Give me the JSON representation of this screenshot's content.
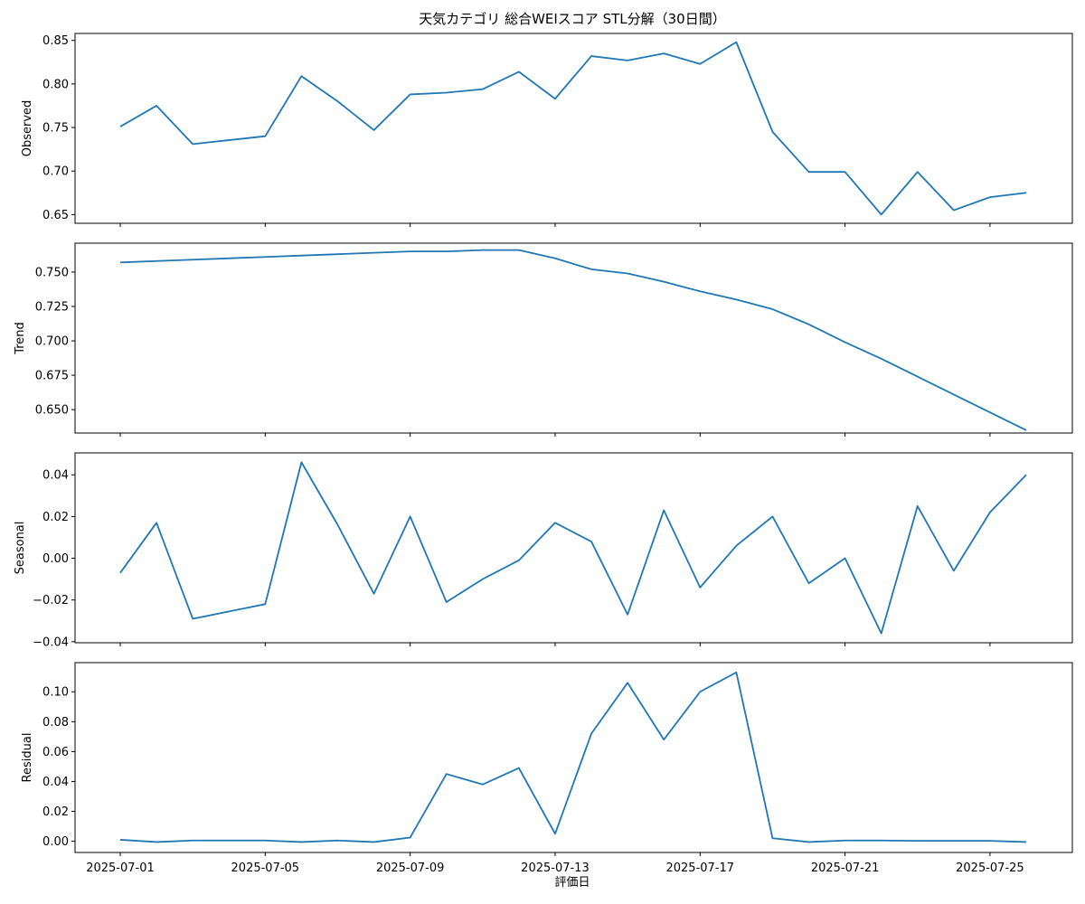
{
  "chart_data": {
    "type": "line",
    "title": "天気カテゴリ 総合WEIスコア STL分解（30日間）",
    "xlabel": "評価日",
    "x": [
      "2025-07-01",
      "2025-07-02",
      "2025-07-03",
      "2025-07-05",
      "2025-07-06",
      "2025-07-07",
      "2025-07-08",
      "2025-07-09",
      "2025-07-10",
      "2025-07-11",
      "2025-07-12",
      "2025-07-13",
      "2025-07-14",
      "2025-07-15",
      "2025-07-16",
      "2025-07-17",
      "2025-07-18",
      "2025-07-19",
      "2025-07-20",
      "2025-07-21",
      "2025-07-22",
      "2025-07-23",
      "2025-07-24",
      "2025-07-25",
      "2025-07-26"
    ],
    "x_ticks": [
      "2025-07-01",
      "2025-07-05",
      "2025-07-09",
      "2025-07-13",
      "2025-07-17",
      "2025-07-21",
      "2025-07-25"
    ],
    "panels": [
      {
        "ylabel": "Observed",
        "ylim": [
          0.64,
          0.858
        ],
        "yticks": [
          "0.65",
          "0.70",
          "0.75",
          "0.80",
          "0.85"
        ],
        "values": [
          0.751,
          0.775,
          0.731,
          0.74,
          0.809,
          0.78,
          0.747,
          0.788,
          0.79,
          0.794,
          0.814,
          0.783,
          0.832,
          0.827,
          0.835,
          0.823,
          0.848,
          0.745,
          0.699,
          0.699,
          0.65,
          0.699,
          0.655,
          0.67,
          0.675
        ]
      },
      {
        "ylabel": "Trend",
        "ylim": [
          0.633,
          0.771
        ],
        "yticks": [
          "0.650",
          "0.675",
          "0.700",
          "0.725",
          "0.750"
        ],
        "values": [
          0.757,
          0.758,
          0.759,
          0.761,
          0.762,
          0.763,
          0.764,
          0.765,
          0.765,
          0.766,
          0.766,
          0.76,
          0.752,
          0.749,
          0.743,
          0.736,
          0.73,
          0.723,
          0.712,
          0.699,
          0.687,
          0.674,
          0.661,
          0.648,
          0.635
        ]
      },
      {
        "ylabel": "Seasonal",
        "ylim": [
          -0.0405,
          0.0505
        ],
        "yticks": [
          "−0.04",
          "−0.02",
          "0.00",
          "0.02",
          "0.04"
        ],
        "values": [
          -0.007,
          0.017,
          -0.029,
          -0.022,
          0.046,
          0.016,
          -0.017,
          0.02,
          -0.021,
          -0.01,
          -0.001,
          0.017,
          0.008,
          -0.027,
          0.023,
          -0.014,
          0.006,
          0.02,
          -0.012,
          0.0,
          -0.036,
          0.025,
          -0.006,
          0.022,
          0.04
        ]
      },
      {
        "ylabel": "Residual",
        "ylim": [
          -0.0075,
          0.1195
        ],
        "yticks": [
          "0.00",
          "0.02",
          "0.04",
          "0.06",
          "0.08",
          "0.10"
        ],
        "values": [
          0.001,
          -0.0005,
          0.0005,
          0.0005,
          -0.0005,
          0.0005,
          -0.0005,
          0.0025,
          0.045,
          0.038,
          0.049,
          0.005,
          0.072,
          0.106,
          0.068,
          0.1,
          0.113,
          0.002,
          -0.0005,
          0.0005,
          0.0005,
          0.0003,
          0.0003,
          0.0003,
          -0.0005
        ]
      }
    ],
    "grid": false,
    "legend": "none"
  }
}
